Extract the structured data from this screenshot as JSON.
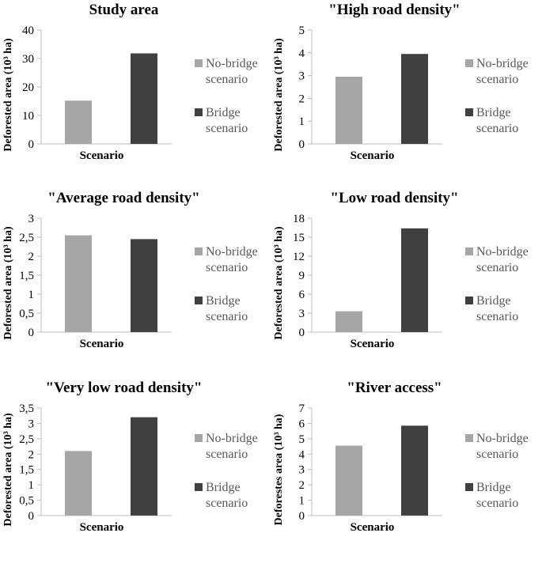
{
  "chart_data": [
    {
      "type": "bar",
      "title": "Study area",
      "xlabel": "Scenario",
      "ylabel": "Deforested area (10³ ha)",
      "ylim": [
        0,
        40
      ],
      "yticks": [
        "0",
        "10",
        "20",
        "30",
        "40"
      ],
      "series": [
        {
          "name": "No-bridge scenario",
          "value": 15.2
        },
        {
          "name": "Bridge scenario",
          "value": 31.8
        }
      ]
    },
    {
      "type": "bar",
      "title": "\"High road density\"",
      "xlabel": "Scenario",
      "ylabel": "Deforested area (10³ ha)",
      "ylim": [
        0,
        5
      ],
      "yticks": [
        "0",
        "1",
        "2",
        "3",
        "4",
        "5"
      ],
      "series": [
        {
          "name": "No-bridge scenario",
          "value": 2.95
        },
        {
          "name": "Bridge scenario",
          "value": 3.95
        }
      ]
    },
    {
      "type": "bar",
      "title": "\"Average road density\"",
      "xlabel": "Scenario",
      "ylabel": "Deforested area (10³ ha)",
      "ylim": [
        0,
        3
      ],
      "yticks": [
        "0",
        "0,5",
        "1",
        "1,5",
        "2",
        "2,5",
        "3"
      ],
      "series": [
        {
          "name": "No-bridge scenario",
          "value": 2.55
        },
        {
          "name": "Bridge scenario",
          "value": 2.45
        }
      ]
    },
    {
      "type": "bar",
      "title": "\"Low road density\"",
      "xlabel": "Scenario",
      "ylabel": "Deforested area (10³ ha)",
      "ylim": [
        0,
        18
      ],
      "yticks": [
        "0",
        "3",
        "6",
        "9",
        "12",
        "15",
        "18"
      ],
      "series": [
        {
          "name": "No-bridge scenario",
          "value": 3.3
        },
        {
          "name": "Bridge scenario",
          "value": 16.4
        }
      ]
    },
    {
      "type": "bar",
      "title": "\"Very low road density\"",
      "xlabel": "Scenario",
      "ylabel": "Deforested area (10³ ha)",
      "ylim": [
        0,
        3.5
      ],
      "yticks": [
        "0",
        "0,5",
        "1",
        "1,5",
        "2",
        "2,5",
        "3",
        "3,5"
      ],
      "series": [
        {
          "name": "No-bridge scenario",
          "value": 2.1
        },
        {
          "name": "Bridge scenario",
          "value": 3.2
        }
      ]
    },
    {
      "type": "bar",
      "title": "\"River access\"",
      "xlabel": "Scenario",
      "ylabel": "Deforestes area (10³ ha)",
      "ylim": [
        0,
        7
      ],
      "yticks": [
        "0",
        "1",
        "2",
        "3",
        "4",
        "5",
        "6",
        "7"
      ],
      "series": [
        {
          "name": "No-bridge scenario",
          "value": 4.55
        },
        {
          "name": "Bridge scenario",
          "value": 5.85
        }
      ]
    }
  ],
  "legend": {
    "no_bridge": [
      "No-bridge",
      "scenario"
    ],
    "bridge": [
      "Bridge",
      "scenario"
    ]
  },
  "colors": {
    "no_bridge": "#a6a6a6",
    "bridge": "#404040"
  }
}
